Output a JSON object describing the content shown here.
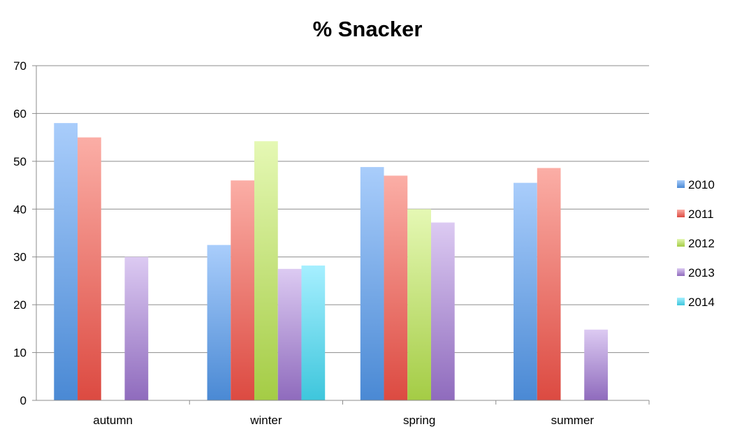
{
  "chart_data": {
    "type": "bar",
    "title": "% Snacker",
    "xlabel": "",
    "ylabel": "",
    "categories": [
      "autumn",
      "winter",
      "spring",
      "summer"
    ],
    "ylim": [
      0,
      70
    ],
    "yticks": [
      "0",
      "10",
      "20",
      "30",
      "40",
      "50",
      "60",
      "70"
    ],
    "grid": true,
    "legend_position": "right",
    "series": [
      {
        "name": "2010",
        "color": "#5b9bd5",
        "light": "#a9cdfb",
        "dark": "#4a89d4",
        "values": [
          58,
          32.5,
          48.8,
          45.5
        ]
      },
      {
        "name": "2011",
        "color": "#e05a4e",
        "light": "#fbaea6",
        "dark": "#dc4a41",
        "values": [
          55,
          46,
          47,
          48.6
        ]
      },
      {
        "name": "2012",
        "color": "#9ac94c",
        "light": "#e5f8b4",
        "dark": "#a4cc45",
        "values": [
          null,
          54.2,
          40,
          null
        ]
      },
      {
        "name": "2013",
        "color": "#9874c4",
        "light": "#dccaf2",
        "dark": "#8f6bbd",
        "values": [
          30,
          27.5,
          37.2,
          14.8
        ]
      },
      {
        "name": "2014",
        "color": "#3cc8e0",
        "light": "#a6efff",
        "dark": "#3ec6dc",
        "values": [
          null,
          28.2,
          null,
          null
        ]
      }
    ]
  }
}
